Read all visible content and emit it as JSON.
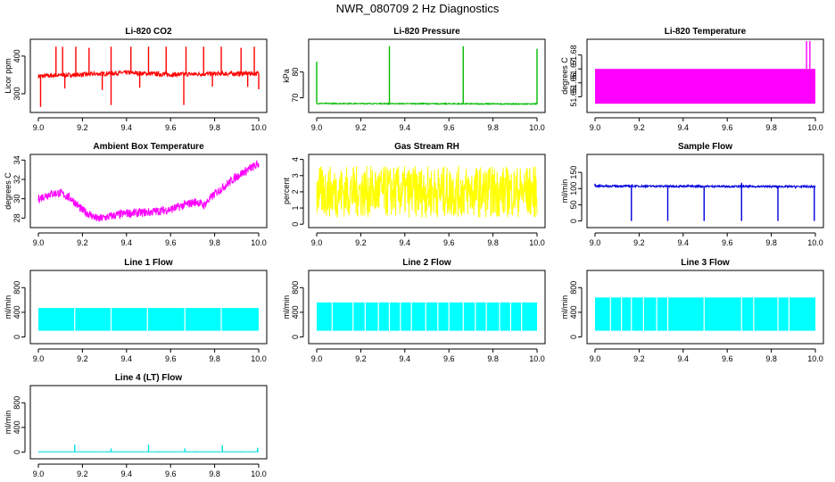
{
  "figure": {
    "title": "NWR_080709 2 Hz Diagnostics"
  },
  "chart_data": [
    {
      "type": "line",
      "title": "Li-820 CO2",
      "ylabel": "Licor ppm",
      "color": "#ff0000",
      "xlim": [
        9.0,
        10.0
      ],
      "ylim": [
        255,
        440
      ],
      "xticks": [
        "9.0",
        "9.2",
        "9.4",
        "9.6",
        "9.8",
        "10.0"
      ],
      "yticks": [
        "300",
        "400"
      ],
      "ytick_values": [
        300,
        400
      ],
      "baseline": [
        [
          9.0,
          347
        ],
        [
          9.2,
          351
        ],
        [
          9.4,
          356
        ],
        [
          9.6,
          351
        ],
        [
          9.8,
          353
        ],
        [
          10.0,
          354
        ]
      ],
      "noise": 6,
      "spikes_up": [
        [
          9.08,
          425
        ],
        [
          9.11,
          425
        ],
        [
          9.17,
          425
        ],
        [
          9.23,
          422
        ],
        [
          9.33,
          425
        ],
        [
          9.42,
          425
        ],
        [
          9.5,
          425
        ],
        [
          9.58,
          425
        ],
        [
          9.67,
          425
        ],
        [
          9.75,
          425
        ],
        [
          9.83,
          425
        ],
        [
          9.92,
          422
        ],
        [
          9.98,
          425
        ]
      ],
      "spikes_down": [
        [
          9.01,
          265
        ],
        [
          9.12,
          314
        ],
        [
          9.29,
          310
        ],
        [
          9.33,
          270
        ],
        [
          9.46,
          316
        ],
        [
          9.66,
          270
        ],
        [
          9.79,
          319
        ],
        [
          9.95,
          318
        ],
        [
          10.0,
          312
        ]
      ]
    },
    {
      "type": "line",
      "title": "Li-820 Pressure",
      "ylabel": "kPa",
      "color": "#00bb00",
      "xlim": [
        9.0,
        10.0
      ],
      "ylim": [
        65,
        92
      ],
      "xticks": [
        "9.0",
        "9.2",
        "9.4",
        "9.6",
        "9.8",
        "10.0"
      ],
      "yticks": [
        "70",
        "80"
      ],
      "ytick_values": [
        70,
        80
      ],
      "baseline": [
        [
          9.0,
          67.8
        ],
        [
          10.0,
          67.6
        ]
      ],
      "noise": 0.2,
      "spikes_up": [
        [
          9.0,
          84
        ],
        [
          9.33,
          90
        ],
        [
          9.665,
          90
        ],
        [
          10.0,
          89
        ]
      ],
      "spikes_down": []
    },
    {
      "type": "area",
      "title": "Li-820 Temperature",
      "ylabel": "degrees C",
      "color": "#ff00ff",
      "xlim": [
        9.0,
        10.0
      ],
      "ylim": [
        51.64,
        51.69
      ],
      "xticks": [
        "9.0",
        "9.2",
        "9.4",
        "9.6",
        "9.8",
        "10.0"
      ],
      "yticks": [
        "51.65",
        "51.66",
        "51.67",
        "51.68"
      ],
      "ytick_values": [
        51.65,
        51.66,
        51.67,
        51.68
      ],
      "band": [
        51.645,
        51.67
      ],
      "spikes_up": [
        [
          9.96,
          51.69
        ],
        [
          9.975,
          51.69
        ]
      ]
    },
    {
      "type": "line",
      "title": "Ambient Box Temperature",
      "ylabel": "degrees C",
      "color": "#ff00ff",
      "xlim": [
        9.0,
        10.0
      ],
      "ylim": [
        27.2,
        34.4
      ],
      "xticks": [
        "9.0",
        "9.2",
        "9.4",
        "9.6",
        "9.8",
        "10.0"
      ],
      "yticks": [
        "28",
        "30",
        "32",
        "34"
      ],
      "ytick_values": [
        28,
        30,
        32,
        34
      ],
      "baseline": [
        [
          9.0,
          30.0
        ],
        [
          9.05,
          30.5
        ],
        [
          9.1,
          30.6
        ],
        [
          9.15,
          30.0
        ],
        [
          9.2,
          28.8
        ],
        [
          9.27,
          27.9
        ],
        [
          9.33,
          28.2
        ],
        [
          9.4,
          28.5
        ],
        [
          9.5,
          28.6
        ],
        [
          9.6,
          28.9
        ],
        [
          9.67,
          29.4
        ],
        [
          9.72,
          29.7
        ],
        [
          9.75,
          29.3
        ],
        [
          9.8,
          30.5
        ],
        [
          9.85,
          31.4
        ],
        [
          9.9,
          32.3
        ],
        [
          9.95,
          33.0
        ],
        [
          10.0,
          33.6
        ]
      ],
      "noise": 0.45,
      "spikes_up": [],
      "spikes_down": []
    },
    {
      "type": "line",
      "title": "Gas Stream RH",
      "ylabel": "percent",
      "color": "#ffff00",
      "xlim": [
        9.0,
        10.0
      ],
      "ylim": [
        -0.1,
        4.2
      ],
      "xticks": [
        "9.0",
        "9.2",
        "9.4",
        "9.6",
        "9.8",
        "10.0"
      ],
      "yticks": [
        "0",
        "1",
        "2",
        "3",
        "4"
      ],
      "ytick_values": [
        0,
        1,
        2,
        3,
        4
      ],
      "baseline": [
        [
          9.0,
          2.0
        ],
        [
          10.0,
          2.0
        ]
      ],
      "noise": 1.6,
      "spikes_up": [],
      "spikes_down": []
    },
    {
      "type": "line",
      "title": "Sample Flow",
      "ylabel": "ml/min",
      "color": "#0000dd",
      "xlim": [
        9.0,
        10.0
      ],
      "ylim": [
        -15,
        200
      ],
      "xticks": [
        "9.0",
        "9.2",
        "9.4",
        "9.6",
        "9.8",
        "10.0"
      ],
      "yticks": [
        "0",
        "50",
        "100",
        "150"
      ],
      "ytick_values": [
        0,
        50,
        100,
        150
      ],
      "baseline": [
        [
          9.0,
          108
        ],
        [
          10.0,
          106
        ]
      ],
      "noise": 3,
      "spikes_up": [
        [
          9.0,
          115
        ],
        [
          9.665,
          118
        ]
      ],
      "spikes_down": [
        [
          9.165,
          0
        ],
        [
          9.33,
          0
        ],
        [
          9.495,
          0
        ],
        [
          9.665,
          0
        ],
        [
          9.83,
          0
        ],
        [
          9.995,
          0
        ]
      ]
    },
    {
      "type": "area",
      "title": "Line 1 Flow",
      "ylabel": "ml/min",
      "color": "#00ffff",
      "xlim": [
        9.0,
        10.0
      ],
      "ylim": [
        -80,
        1050
      ],
      "xticks": [
        "9.0",
        "9.2",
        "9.4",
        "9.6",
        "9.8",
        "10.0"
      ],
      "yticks": [
        "0",
        "400",
        "800"
      ],
      "ytick_values": [
        0,
        400,
        800
      ],
      "band": [
        100,
        470
      ],
      "gaps": [
        9.165,
        9.33,
        9.495,
        9.665,
        9.83
      ]
    },
    {
      "type": "area",
      "title": "Line 2 Flow",
      "ylabel": "ml/min",
      "color": "#00ffff",
      "xlim": [
        9.0,
        10.0
      ],
      "ylim": [
        -80,
        1050
      ],
      "xticks": [
        "9.0",
        "9.2",
        "9.4",
        "9.6",
        "9.8",
        "10.0"
      ],
      "yticks": [
        "0",
        "400",
        "800"
      ],
      "ytick_values": [
        0,
        400,
        800
      ],
      "band": [
        100,
        560
      ],
      "gaps": [
        9.07,
        9.165,
        9.22,
        9.28,
        9.33,
        9.38,
        9.43,
        9.495,
        9.55,
        9.6,
        9.665,
        9.72,
        9.77,
        9.83,
        9.88,
        9.93
      ]
    },
    {
      "type": "area",
      "title": "Line 3 Flow",
      "ylabel": "ml/min",
      "color": "#00ffff",
      "xlim": [
        9.0,
        10.0
      ],
      "ylim": [
        -80,
        1050
      ],
      "xticks": [
        "9.0",
        "9.2",
        "9.4",
        "9.6",
        "9.8",
        "10.0"
      ],
      "yticks": [
        "0",
        "400",
        "800"
      ],
      "ytick_values": [
        0,
        400,
        800
      ],
      "band": [
        100,
        640
      ],
      "gaps": [
        9.07,
        9.12,
        9.165,
        9.22,
        9.28,
        9.33,
        9.495,
        9.665,
        9.72,
        9.83,
        9.88
      ]
    },
    {
      "type": "line",
      "title": "Line 4 (LT) Flow",
      "ylabel": "ml/min",
      "color": "#00dddd",
      "xlim": [
        9.0,
        10.0
      ],
      "ylim": [
        -80,
        1050
      ],
      "xticks": [
        "9.0",
        "9.2",
        "9.4",
        "9.6",
        "9.8",
        "10.0"
      ],
      "yticks": [
        "0",
        "400",
        "800"
      ],
      "ytick_values": [
        0,
        400,
        800
      ],
      "baseline": [
        [
          9.0,
          5
        ],
        [
          10.0,
          5
        ]
      ],
      "noise": 2,
      "spikes_up": [
        [
          9.165,
          120
        ],
        [
          9.33,
          60
        ],
        [
          9.5,
          120
        ],
        [
          9.665,
          60
        ],
        [
          9.835,
          110
        ],
        [
          9.995,
          70
        ]
      ],
      "spikes_down": []
    }
  ]
}
